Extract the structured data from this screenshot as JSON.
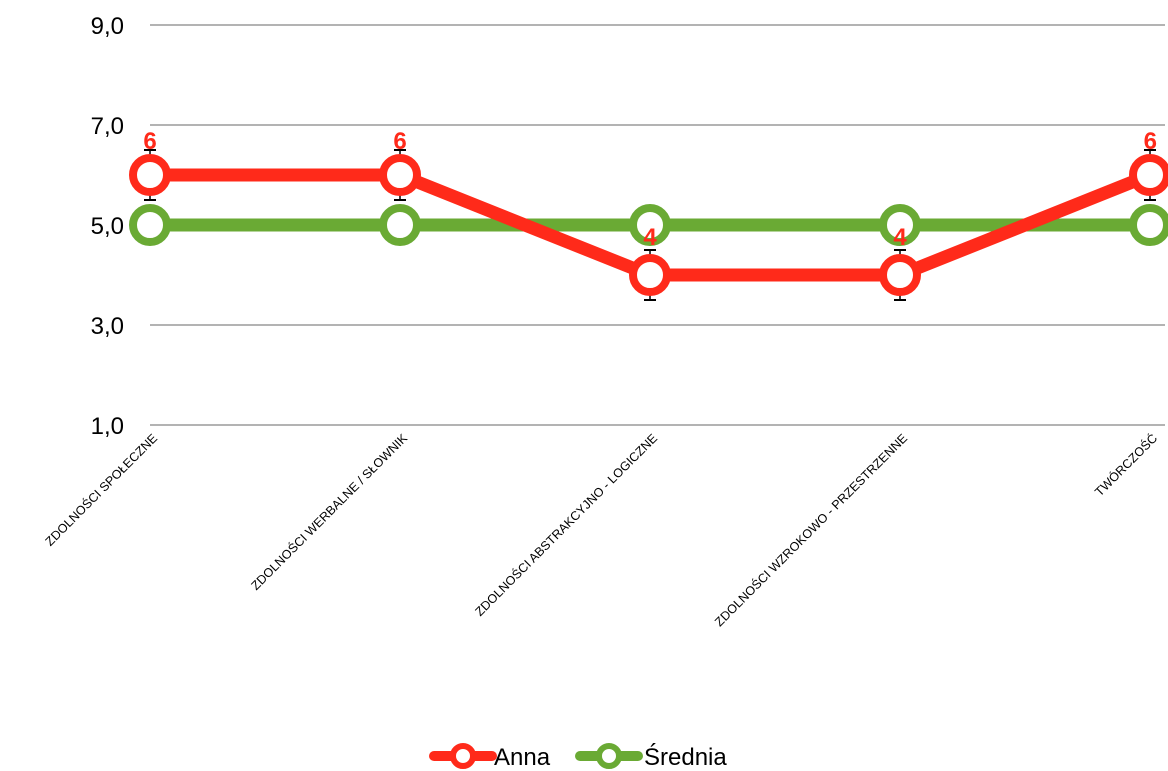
{
  "chart_data": {
    "type": "line",
    "title": "",
    "xlabel": "",
    "ylabel": "",
    "categories": [
      "ZDOLNOŚCI SPOŁECZNE",
      "ZDOLNOŚCI WERBALNE / SŁOWNIK",
      "ZDOLNOŚCI ABSTRAKCYJNO - LOGICZNE",
      "ZDOLNOŚCI  WZROKOWO - PRZESTRZENNE",
      "TWÓRCZOŚĆ"
    ],
    "ylim": [
      1,
      9
    ],
    "yticks": [
      1,
      3,
      5,
      7,
      9
    ],
    "ytick_labels": [
      "1,0",
      "3,0",
      "5,0",
      "7,0",
      "9,0"
    ],
    "grid": true,
    "legend_position": "bottom",
    "series": [
      {
        "name": "Anna",
        "values": [
          6,
          6,
          4,
          4,
          6
        ],
        "data_labels": [
          "6",
          "6",
          "4",
          "4",
          "6"
        ],
        "error": 0.5,
        "color": "#ff2a1a"
      },
      {
        "name": "Średnia",
        "values": [
          5,
          5,
          5,
          5,
          5
        ],
        "color": "#6aaa34"
      }
    ]
  }
}
